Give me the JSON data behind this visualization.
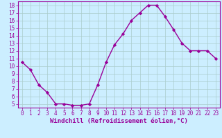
{
  "x": [
    0,
    1,
    2,
    3,
    4,
    5,
    6,
    7,
    8,
    9,
    10,
    11,
    12,
    13,
    14,
    15,
    16,
    17,
    18,
    19,
    20,
    21,
    22,
    23
  ],
  "y": [
    10.5,
    9.5,
    7.5,
    6.5,
    5.0,
    5.0,
    4.8,
    4.8,
    5.0,
    7.5,
    10.5,
    12.8,
    14.2,
    16.0,
    17.0,
    18.0,
    18.0,
    16.5,
    14.8,
    13.0,
    12.0,
    12.0,
    12.0,
    11.0
  ],
  "line_color": "#990099",
  "marker": "D",
  "marker_size": 2.2,
  "bg_color": "#cceeff",
  "grid_color": "#aacccc",
  "xlabel": "Windchill (Refroidissement éolien,°C)",
  "xlim": [
    -0.5,
    23.5
  ],
  "ylim": [
    4.5,
    18.5
  ],
  "yticks": [
    5,
    6,
    7,
    8,
    9,
    10,
    11,
    12,
    13,
    14,
    15,
    16,
    17,
    18
  ],
  "xticks": [
    0,
    1,
    2,
    3,
    4,
    5,
    6,
    7,
    8,
    9,
    10,
    11,
    12,
    13,
    14,
    15,
    16,
    17,
    18,
    19,
    20,
    21,
    22,
    23
  ],
  "xlabel_fontsize": 6.5,
  "tick_fontsize": 5.5,
  "line_width": 1.0
}
